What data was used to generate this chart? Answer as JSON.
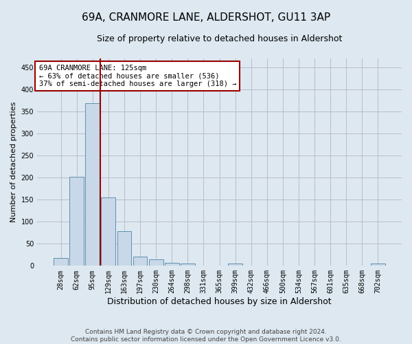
{
  "title": "69A, CRANMORE LANE, ALDERSHOT, GU11 3AP",
  "subtitle": "Size of property relative to detached houses in Aldershot",
  "xlabel": "Distribution of detached houses by size in Aldershot",
  "ylabel": "Number of detached properties",
  "footer_line1": "Contains HM Land Registry data © Crown copyright and database right 2024.",
  "footer_line2": "Contains public sector information licensed under the Open Government Licence v3.0.",
  "bin_labels": [
    "28sqm",
    "62sqm",
    "95sqm",
    "129sqm",
    "163sqm",
    "197sqm",
    "230sqm",
    "264sqm",
    "298sqm",
    "331sqm",
    "365sqm",
    "399sqm",
    "432sqm",
    "466sqm",
    "500sqm",
    "534sqm",
    "567sqm",
    "601sqm",
    "635sqm",
    "668sqm",
    "702sqm"
  ],
  "bar_values": [
    18,
    202,
    369,
    155,
    78,
    21,
    14,
    7,
    5,
    0,
    0,
    5,
    0,
    0,
    0,
    0,
    0,
    0,
    0,
    0,
    5
  ],
  "bar_color": "#c8d8e8",
  "bar_edge_color": "#6090b0",
  "grid_color": "#bbbbcc",
  "background_color": "#dde8f0",
  "vertical_line_color": "#990000",
  "annotation_text": "69A CRANMORE LANE: 125sqm\n← 63% of detached houses are smaller (536)\n37% of semi-detached houses are larger (318) →",
  "annotation_box_color": "white",
  "annotation_box_edge": "#990000",
  "ylim": [
    0,
    470
  ],
  "yticks": [
    0,
    50,
    100,
    150,
    200,
    250,
    300,
    350,
    400,
    450
  ],
  "title_fontsize": 11,
  "subtitle_fontsize": 9,
  "ylabel_fontsize": 8,
  "xlabel_fontsize": 9,
  "tick_fontsize": 7,
  "footer_fontsize": 6.5
}
